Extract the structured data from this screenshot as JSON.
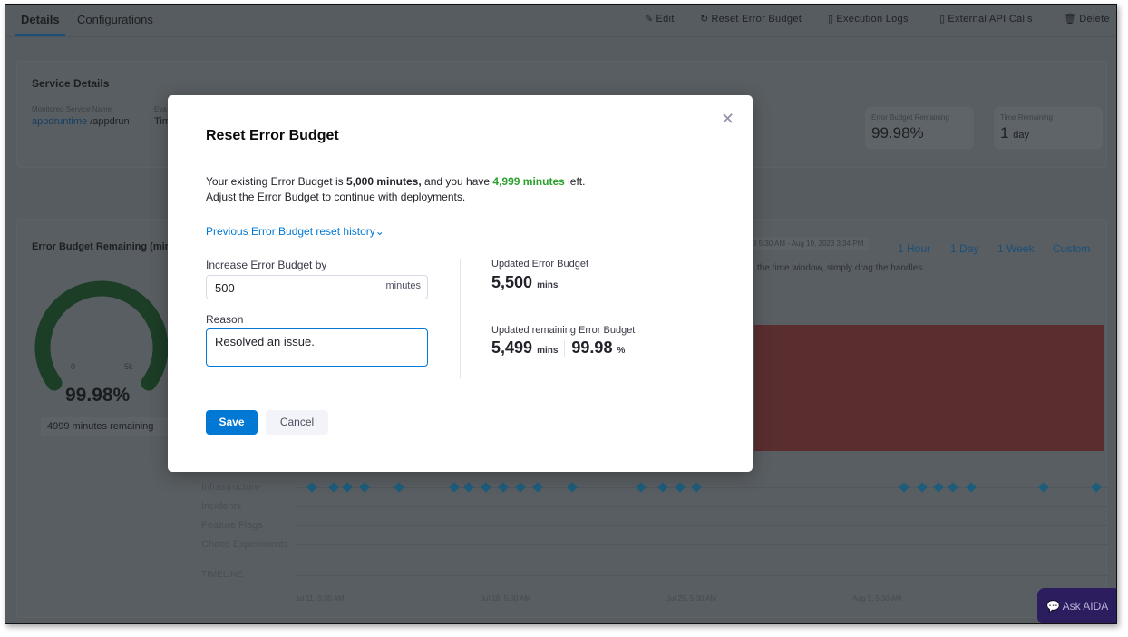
{
  "tabs": [
    {
      "label": "Details"
    },
    {
      "label": "Configurations"
    }
  ],
  "actions": [
    {
      "label": "Edit",
      "icon": "pencil-icon"
    },
    {
      "label": "Reset Error Budget",
      "icon": "reset-icon"
    },
    {
      "label": "Execution Logs",
      "icon": "document-icon"
    },
    {
      "label": "External API Calls",
      "icon": "api-document-icon"
    },
    {
      "label": "Delete",
      "icon": "trash-icon"
    }
  ],
  "service": {
    "title": "Service Details",
    "monitored_label": "Monitored Service Name",
    "monitored_link": "appdruntime",
    "monitored_suffix": "/appdrun",
    "eval_label": "Eva",
    "eval_value": "Tim",
    "stats": [
      {
        "label": "Error Budget Remaining",
        "value": "99.98%"
      },
      {
        "label": "Time Remaining",
        "value": "1",
        "unit": "day"
      }
    ]
  },
  "budget_card": {
    "title": "Error Budget Remaining (mins)",
    "gauge_min": "0",
    "gauge_max": "5k",
    "percent": "99.98%",
    "remaining": "4999 minutes remaining",
    "gauge_fill": 0.9998,
    "gauge_color": "#1c3d26"
  },
  "chart": {
    "range": "3 5:30 AM - Aug 10, 2023 3:34 PM",
    "ranges": [
      "1 Hour",
      "1 Day",
      "1 Week",
      "Custom"
    ],
    "hint": "the time window, simply drag the handles.",
    "rows": [
      "Infrastructure",
      "Incidents",
      "Feature Flags",
      "Chaos Experiments",
      "TIMELINE"
    ],
    "xticks": [
      "Jul 11, 5:30 AM",
      "Jul 18, 5:30 AM",
      "Jul 25, 5:30 AM",
      "Aug 1, 5:30 AM"
    ],
    "bad_color": "#5a2e2f"
  },
  "modal": {
    "title": "Reset Error Budget",
    "line1_pre": "Your existing Error Budget is ",
    "line1_bold": "5,000 minutes,",
    "line1_mid": " and you have ",
    "line1_green": "4,999 minutes",
    "line1_post": " left.",
    "line2": "Adjust the Error Budget to continue with deployments.",
    "history_link": "Previous Error Budget reset history",
    "increase_label": "Increase Error Budget by",
    "increase_value": "500",
    "increase_unit": "minutes",
    "reason_label": "Reason",
    "reason_value": "Resolved an issue.",
    "updated_label": "Updated Error Budget",
    "updated_value": "5,500",
    "updated_unit": "mins",
    "remaining_label": "Updated remaining Error Budget",
    "remaining_value": "5,499",
    "remaining_unit": "mins",
    "remaining_pct": "99.98",
    "pct_unit": "%",
    "save": "Save",
    "cancel": "Cancel",
    "accent": "#0278d5",
    "green": "#2ca02c"
  },
  "aida": "Ask AIDA"
}
